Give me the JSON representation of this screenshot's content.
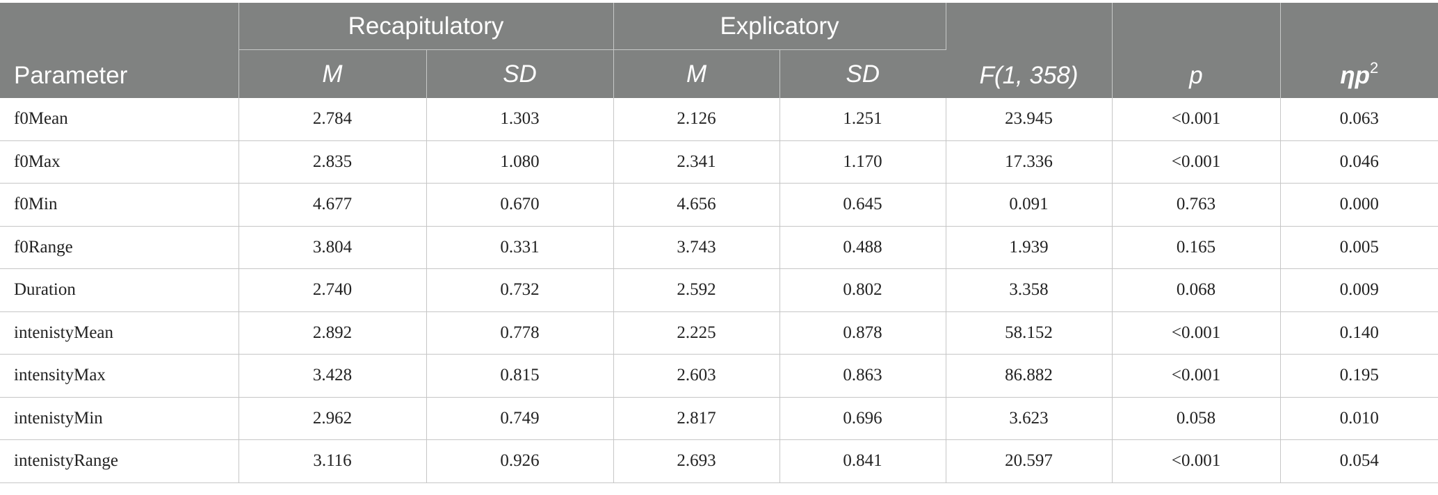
{
  "header": {
    "parameter": "Parameter",
    "group_recap": "Recapitulatory",
    "group_expl": "Explicatory",
    "f_stat": "F(1, 358)",
    "p": "p",
    "eta_base": "ηp",
    "eta_sup": "2",
    "sub_labels": [
      "M",
      "SD",
      "M",
      "SD"
    ]
  },
  "rows": [
    {
      "param": "f0Mean",
      "recap_m": "2.784",
      "recap_sd": "1.303",
      "expl_m": "2.126",
      "expl_sd": "1.251",
      "f": "23.945",
      "p": "<0.001",
      "eta": "0.063"
    },
    {
      "param": "f0Max",
      "recap_m": "2.835",
      "recap_sd": "1.080",
      "expl_m": "2.341",
      "expl_sd": "1.170",
      "f": "17.336",
      "p": "<0.001",
      "eta": "0.046"
    },
    {
      "param": "f0Min",
      "recap_m": "4.677",
      "recap_sd": "0.670",
      "expl_m": "4.656",
      "expl_sd": "0.645",
      "f": "0.091",
      "p": "0.763",
      "eta": "0.000"
    },
    {
      "param": "f0Range",
      "recap_m": "3.804",
      "recap_sd": "0.331",
      "expl_m": "3.743",
      "expl_sd": "0.488",
      "f": "1.939",
      "p": "0.165",
      "eta": "0.005"
    },
    {
      "param": "Duration",
      "recap_m": "2.740",
      "recap_sd": "0.732",
      "expl_m": "2.592",
      "expl_sd": "0.802",
      "f": "3.358",
      "p": "0.068",
      "eta": "0.009"
    },
    {
      "param": "intenistyMean",
      "recap_m": "2.892",
      "recap_sd": "0.778",
      "expl_m": "2.225",
      "expl_sd": "0.878",
      "f": "58.152",
      "p": "<0.001",
      "eta": "0.140"
    },
    {
      "param": "intensityMax",
      "recap_m": "3.428",
      "recap_sd": "0.815",
      "expl_m": "2.603",
      "expl_sd": "0.863",
      "f": "86.882",
      "p": "<0.001",
      "eta": "0.195"
    },
    {
      "param": "intenistyMin",
      "recap_m": "2.962",
      "recap_sd": "0.749",
      "expl_m": "2.817",
      "expl_sd": "0.696",
      "f": "3.623",
      "p": "0.058",
      "eta": "0.010"
    },
    {
      "param": "intenistyRange",
      "recap_m": "3.116",
      "recap_sd": "0.926",
      "expl_m": "2.693",
      "expl_sd": "0.841",
      "f": "20.597",
      "p": "<0.001",
      "eta": "0.054"
    }
  ]
}
